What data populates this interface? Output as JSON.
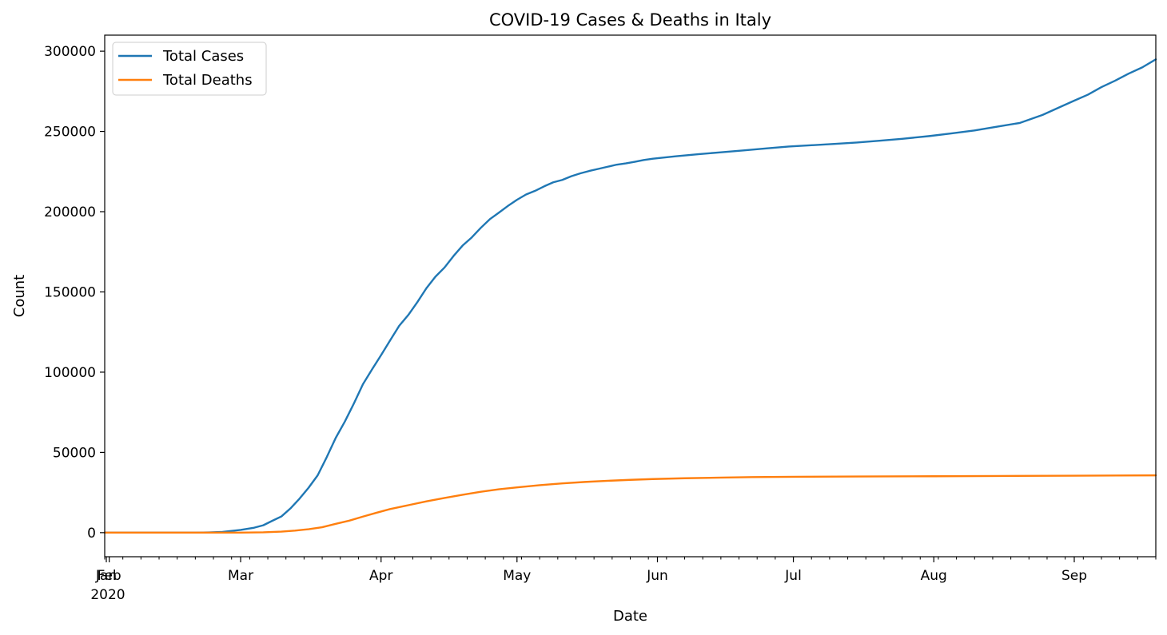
{
  "chart_data": {
    "type": "line",
    "title": "COVID-19 Cases & Deaths in Italy",
    "xlabel": "Date",
    "ylabel": "Count",
    "x_range": [
      "2020-01-31",
      "2020-09-19"
    ],
    "ylim": [
      -15000,
      310000
    ],
    "y_ticks": [
      0,
      50000,
      100000,
      150000,
      200000,
      250000,
      300000
    ],
    "x_ticks": [
      {
        "date": "2020-02-01",
        "label": "Feb"
      },
      {
        "date": "2020-03-01",
        "label": "Mar"
      },
      {
        "date": "2020-04-01",
        "label": "Apr"
      },
      {
        "date": "2020-05-01",
        "label": "May"
      },
      {
        "date": "2020-06-01",
        "label": "Jun"
      },
      {
        "date": "2020-07-01",
        "label": "Jul"
      },
      {
        "date": "2020-08-01",
        "label": "Aug"
      },
      {
        "date": "2020-09-01",
        "label": "Sep"
      }
    ],
    "x_first_tick_label": "Jan",
    "x_year_label": "2020",
    "grid": false,
    "legend_position": "upper-left",
    "series": [
      {
        "name": "Total Cases",
        "color": "#1f77b4",
        "points": [
          [
            "2020-01-31",
            0
          ],
          [
            "2020-02-10",
            0
          ],
          [
            "2020-02-20",
            3
          ],
          [
            "2020-02-23",
            150
          ],
          [
            "2020-02-26",
            450
          ],
          [
            "2020-03-01",
            1700
          ],
          [
            "2020-03-04",
            3100
          ],
          [
            "2020-03-06",
            4600
          ],
          [
            "2020-03-08",
            7400
          ],
          [
            "2020-03-10",
            10100
          ],
          [
            "2020-03-12",
            15100
          ],
          [
            "2020-03-14",
            21200
          ],
          [
            "2020-03-16",
            27980
          ],
          [
            "2020-03-18",
            35700
          ],
          [
            "2020-03-20",
            47000
          ],
          [
            "2020-03-22",
            59100
          ],
          [
            "2020-03-24",
            69200
          ],
          [
            "2020-03-26",
            80500
          ],
          [
            "2020-03-28",
            92500
          ],
          [
            "2020-03-30",
            101700
          ],
          [
            "2020-04-01",
            110600
          ],
          [
            "2020-04-03",
            119800
          ],
          [
            "2020-04-05",
            128900
          ],
          [
            "2020-04-07",
            135600
          ],
          [
            "2020-04-09",
            143600
          ],
          [
            "2020-04-11",
            152300
          ],
          [
            "2020-04-13",
            159500
          ],
          [
            "2020-04-15",
            165200
          ],
          [
            "2020-04-17",
            172400
          ],
          [
            "2020-04-19",
            178900
          ],
          [
            "2020-04-21",
            183900
          ],
          [
            "2020-04-23",
            189900
          ],
          [
            "2020-04-25",
            195300
          ],
          [
            "2020-04-27",
            199400
          ],
          [
            "2020-04-29",
            203600
          ],
          [
            "2020-05-01",
            207400
          ],
          [
            "2020-05-03",
            210700
          ],
          [
            "2020-05-05",
            213000
          ],
          [
            "2020-05-07",
            215800
          ],
          [
            "2020-05-09",
            218300
          ],
          [
            "2020-05-11",
            219800
          ],
          [
            "2020-05-13",
            222100
          ],
          [
            "2020-05-15",
            223900
          ],
          [
            "2020-05-17",
            225400
          ],
          [
            "2020-05-19",
            226700
          ],
          [
            "2020-05-21",
            228000
          ],
          [
            "2020-05-23",
            229300
          ],
          [
            "2020-05-25",
            230100
          ],
          [
            "2020-05-27",
            231100
          ],
          [
            "2020-05-29",
            232200
          ],
          [
            "2020-05-31",
            233000
          ],
          [
            "2020-06-05",
            234500
          ],
          [
            "2020-06-10",
            235800
          ],
          [
            "2020-06-15",
            237000
          ],
          [
            "2020-06-20",
            238200
          ],
          [
            "2020-06-25",
            239400
          ],
          [
            "2020-06-30",
            240600
          ],
          [
            "2020-07-05",
            241400
          ],
          [
            "2020-07-10",
            242200
          ],
          [
            "2020-07-15",
            243100
          ],
          [
            "2020-07-20",
            244200
          ],
          [
            "2020-07-25",
            245400
          ],
          [
            "2020-07-31",
            247100
          ],
          [
            "2020-08-05",
            248800
          ],
          [
            "2020-08-10",
            250600
          ],
          [
            "2020-08-15",
            253000
          ],
          [
            "2020-08-20",
            255300
          ],
          [
            "2020-08-25",
            260300
          ],
          [
            "2020-08-29",
            265400
          ],
          [
            "2020-09-01",
            269200
          ],
          [
            "2020-09-04",
            272900
          ],
          [
            "2020-09-07",
            277600
          ],
          [
            "2020-09-10",
            281600
          ],
          [
            "2020-09-13",
            286000
          ],
          [
            "2020-09-16",
            289900
          ],
          [
            "2020-09-19",
            294900
          ]
        ]
      },
      {
        "name": "Total Deaths",
        "color": "#ff7f0e",
        "points": [
          [
            "2020-01-31",
            0
          ],
          [
            "2020-02-22",
            0
          ],
          [
            "2020-03-01",
            30
          ],
          [
            "2020-03-06",
            200
          ],
          [
            "2020-03-10",
            630
          ],
          [
            "2020-03-13",
            1270
          ],
          [
            "2020-03-16",
            2160
          ],
          [
            "2020-03-19",
            3400
          ],
          [
            "2020-03-22",
            5480
          ],
          [
            "2020-03-25",
            7500
          ],
          [
            "2020-03-28",
            10000
          ],
          [
            "2020-03-31",
            12400
          ],
          [
            "2020-04-03",
            14700
          ],
          [
            "2020-04-07",
            17100
          ],
          [
            "2020-04-11",
            19500
          ],
          [
            "2020-04-15",
            21600
          ],
          [
            "2020-04-19",
            23600
          ],
          [
            "2020-04-23",
            25500
          ],
          [
            "2020-04-27",
            27000
          ],
          [
            "2020-05-01",
            28200
          ],
          [
            "2020-05-06",
            29600
          ],
          [
            "2020-05-11",
            30700
          ],
          [
            "2020-05-16",
            31600
          ],
          [
            "2020-05-21",
            32300
          ],
          [
            "2020-05-26",
            32900
          ],
          [
            "2020-05-31",
            33400
          ],
          [
            "2020-06-07",
            33900
          ],
          [
            "2020-06-15",
            34300
          ],
          [
            "2020-06-22",
            34600
          ],
          [
            "2020-07-01",
            34800
          ],
          [
            "2020-07-15",
            34980
          ],
          [
            "2020-08-01",
            35150
          ],
          [
            "2020-08-15",
            35300
          ],
          [
            "2020-09-01",
            35500
          ],
          [
            "2020-09-19",
            35700
          ]
        ]
      }
    ]
  }
}
